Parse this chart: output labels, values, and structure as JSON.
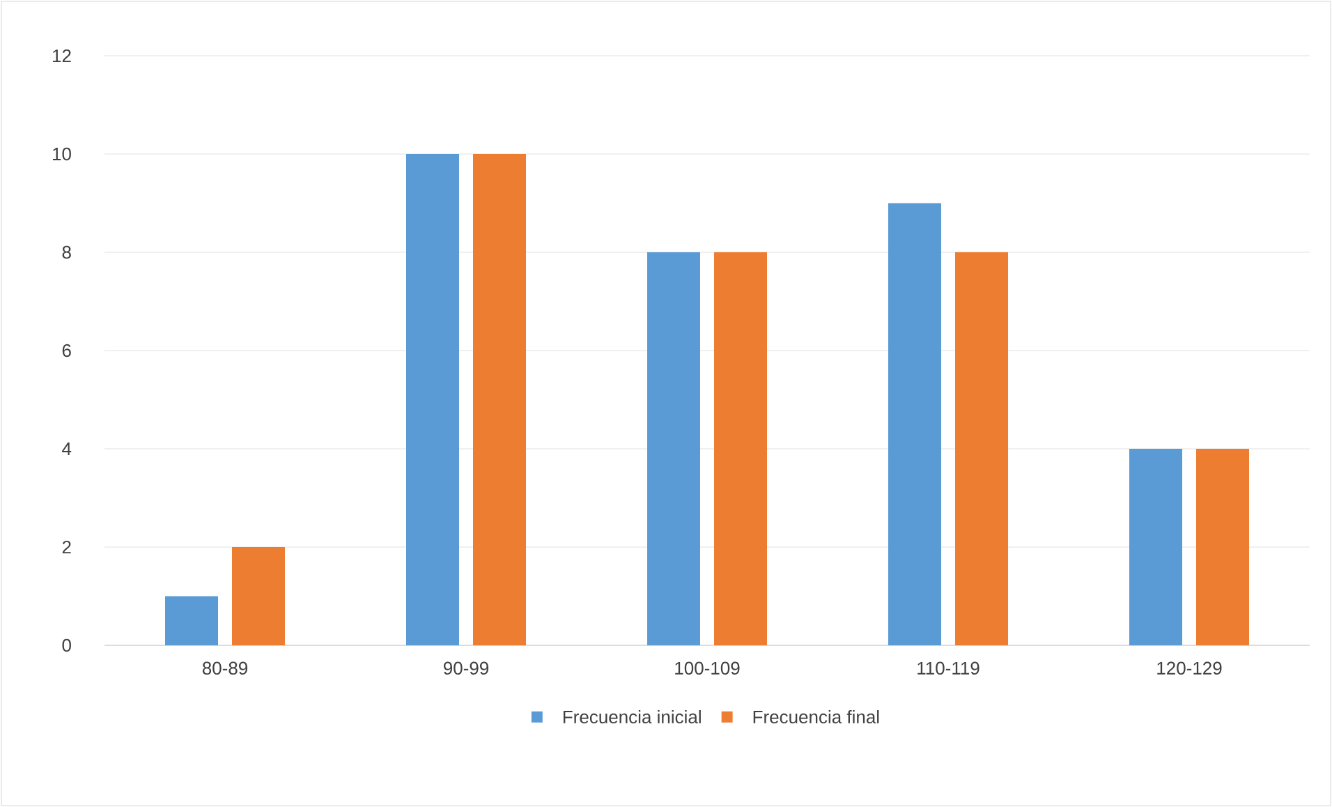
{
  "chart_data": {
    "type": "bar",
    "categories": [
      "80-89",
      "90-99",
      "100-109",
      "110-119",
      "120-129"
    ],
    "series": [
      {
        "name": "Frecuencia inicial",
        "color": "#5b9bd5",
        "values": [
          1,
          10,
          8,
          9,
          4
        ]
      },
      {
        "name": "Frecuencia final",
        "color": "#ed7d31",
        "values": [
          2,
          10,
          8,
          8,
          4
        ]
      }
    ],
    "ylim": [
      0,
      12
    ],
    "yticks": [
      0,
      2,
      4,
      6,
      8,
      10,
      12
    ],
    "grid": "y",
    "legend": "bottom"
  }
}
